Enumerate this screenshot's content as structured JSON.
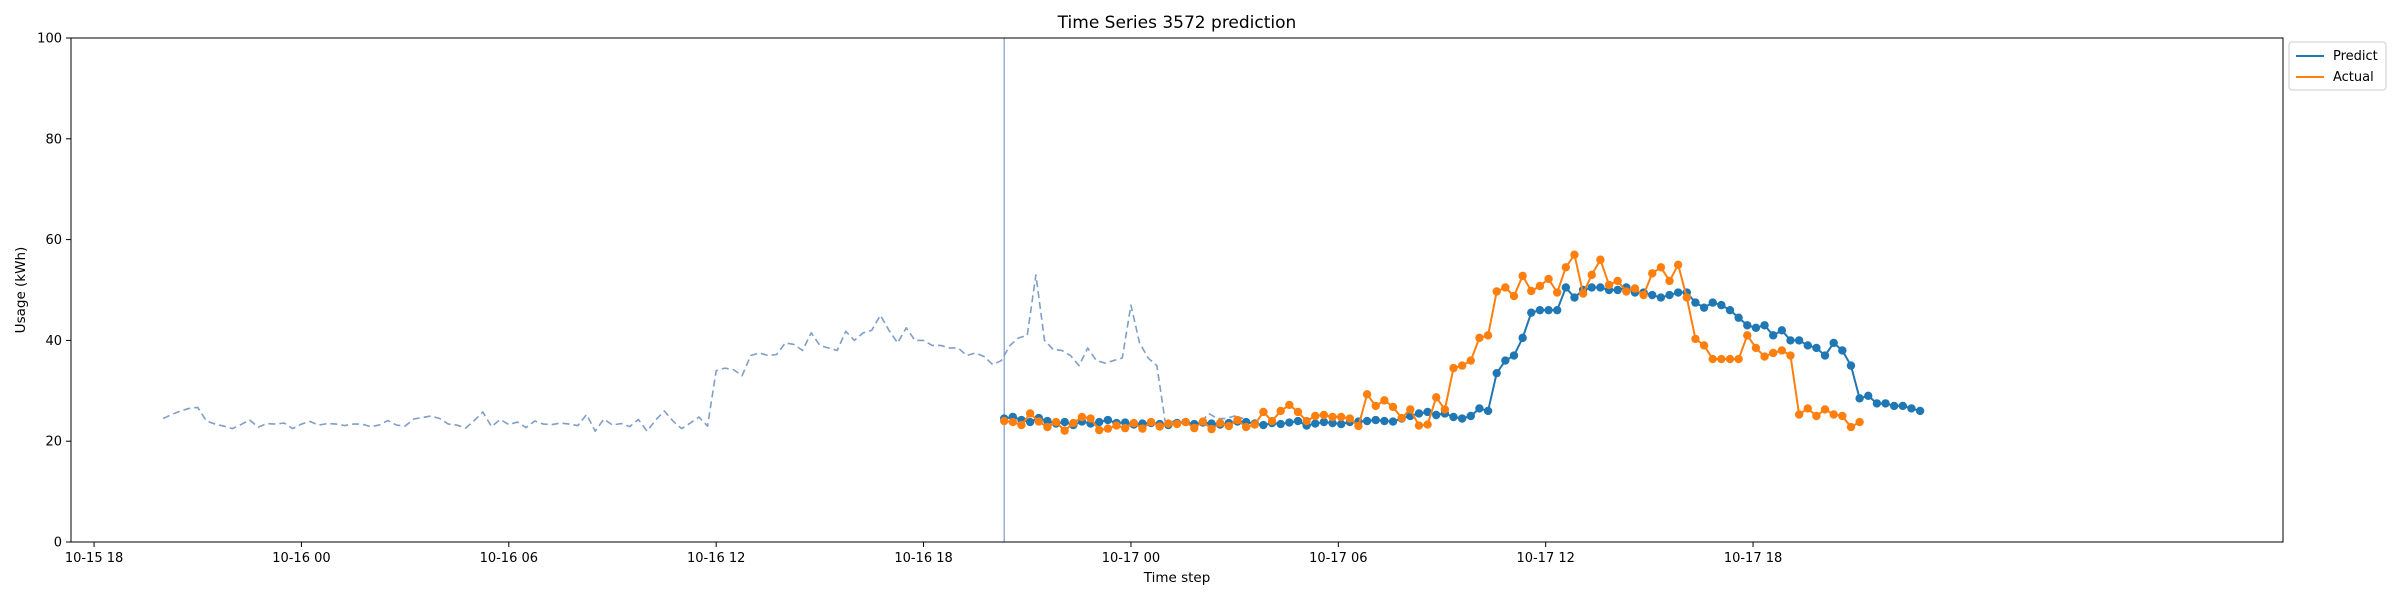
{
  "chart_data": {
    "type": "line",
    "title": "Time Series 3572 prediction",
    "xlabel": "Time step",
    "ylabel": "Usage (kWh)",
    "ylim": [
      0,
      100
    ],
    "xlim_hours": [
      -30,
      34
    ],
    "y_ticks": [
      0,
      20,
      40,
      60,
      80,
      100
    ],
    "x_ticks": [
      {
        "h": -29.333,
        "label": "10-15 18"
      },
      {
        "h": -23.333,
        "label": "10-16 00"
      },
      {
        "h": -17.333,
        "label": "10-16 06"
      },
      {
        "h": -11.333,
        "label": "10-16 12"
      },
      {
        "h": -5.333,
        "label": "10-16 18"
      },
      {
        "h": 0.667,
        "label": "10-17 00"
      },
      {
        "h": 6.667,
        "label": "10-17 06"
      },
      {
        "h": 12.667,
        "label": "10-17 12"
      },
      {
        "h": 18.667,
        "label": "10-17 18"
      }
    ],
    "forecast_start_hour": -3.0,
    "grid": false,
    "legend_position": "outside top-right",
    "history": {
      "start_hour": -27.333,
      "step_hours": 0.25,
      "color": "#7f9ec8",
      "values": [
        24.5,
        25.3,
        26.0,
        26.5,
        26.7,
        24.0,
        23.4,
        23.0,
        22.5,
        23.3,
        24.2,
        22.8,
        23.5,
        23.4,
        23.6,
        22.5,
        23.4,
        23.9,
        23.2,
        23.5,
        23.4,
        23.1,
        23.4,
        23.4,
        22.9,
        23.2,
        24.1,
        23.2,
        23.0,
        24.4,
        24.7,
        25.0,
        24.5,
        23.4,
        23.2,
        22.6,
        24.1,
        25.8,
        22.9,
        24.3,
        23.3,
        23.8,
        22.7,
        24.0,
        23.4,
        23.3,
        23.6,
        23.4,
        23.1,
        25.3,
        22.0,
        24.4,
        23.2,
        23.5,
        22.9,
        24.3,
        22.0,
        24.2,
        26.0,
        24.0,
        22.5,
        23.6,
        24.8,
        23.0,
        34.0,
        34.5,
        34.2,
        33.0,
        37.0,
        37.5,
        37.0,
        37.2,
        39.5,
        39.2,
        38.0,
        41.5,
        39.0,
        38.5,
        38.0,
        41.8,
        40.0,
        41.5,
        42.0,
        45.0,
        42.0,
        39.5,
        42.5,
        40.0,
        40.0,
        39.0,
        39.0,
        38.5,
        38.5,
        37.0,
        37.5,
        36.8,
        35.2,
        36.0,
        39.0,
        40.5,
        41.0,
        53.0,
        40.0,
        38.2,
        38.0,
        37.0,
        35.0,
        38.5,
        36.0,
        35.5,
        36.0,
        36.5,
        47.0,
        39.5,
        36.5,
        35.0,
        23.5,
        24.0,
        23.5,
        23.2,
        23.5,
        25.5,
        24.5,
        24.5,
        25.0,
        24.5
      ]
    },
    "series": [
      {
        "name": "Predict",
        "color": "#1f77b4",
        "values": [
          24.5,
          24.8,
          24.2,
          23.8,
          24.6,
          24.0,
          23.5,
          23.8,
          23.2,
          23.9,
          23.5,
          23.8,
          24.2,
          23.6,
          23.7,
          23.3,
          23.5,
          23.6,
          23.4,
          23.2,
          23.6,
          23.8,
          23.4,
          23.7,
          23.5,
          23.3,
          23.6,
          23.9,
          23.8,
          23.5,
          23.2,
          23.6,
          23.4,
          23.7,
          24.0,
          23.1,
          23.5,
          23.8,
          23.6,
          23.4,
          23.8,
          23.9,
          24.0,
          24.2,
          24.0,
          23.9,
          24.5,
          25.0,
          25.5,
          25.8,
          25.2,
          25.5,
          24.8,
          24.5,
          25.0,
          26.5,
          26.0,
          33.5,
          36.0,
          37.0,
          40.5,
          45.5,
          46.0,
          46.0,
          46.0,
          50.5,
          48.5,
          50.0,
          50.5,
          50.5,
          50.0,
          50.0,
          50.5,
          49.5,
          49.5,
          49.0,
          48.5,
          49.0,
          49.5,
          49.5,
          47.5,
          46.5,
          47.5,
          47.0,
          46.0,
          44.5,
          43.0,
          42.5,
          43.0,
          41.0,
          42.0,
          40.0,
          40.0,
          39.0,
          38.5,
          37.0,
          39.5,
          38.0,
          35.0,
          28.5,
          29.0,
          27.5,
          27.5,
          27.0,
          27.0,
          26.5,
          26.0
        ]
      },
      {
        "name": "Actual",
        "color": "#ff7f0e",
        "values": [
          24.0,
          23.8,
          23.2,
          25.5,
          23.9,
          22.8,
          23.8,
          22.1,
          23.6,
          24.8,
          24.5,
          22.2,
          22.5,
          23.1,
          22.6,
          23.6,
          22.5,
          23.8,
          22.9,
          23.5,
          23.4,
          23.8,
          22.6,
          23.9,
          22.4,
          23.6,
          23.0,
          24.2,
          22.8,
          23.3,
          25.8,
          24.0,
          26.0,
          27.2,
          25.8,
          24.0,
          25.0,
          25.2,
          24.8,
          24.8,
          24.5,
          23.0,
          29.3,
          27.0,
          28.1,
          26.8,
          24.6,
          26.3,
          23.1,
          23.3,
          28.7,
          26.3,
          34.5,
          35.0,
          36.0,
          40.5,
          41.0,
          49.7,
          50.5,
          48.8,
          52.8,
          49.8,
          50.8,
          52.2,
          49.5,
          54.5,
          57.0,
          49.3,
          53.0,
          56.0,
          51.0,
          51.8,
          49.7,
          50.3,
          49.0,
          53.3,
          54.5,
          51.8,
          55.0,
          48.5,
          40.3,
          39.0,
          36.3,
          36.3,
          36.3,
          36.3,
          41.0,
          38.5,
          36.8,
          37.5,
          38.0,
          37.0,
          25.3,
          26.5,
          25.0,
          26.3,
          25.3,
          25.0,
          22.8,
          23.8
        ]
      }
    ]
  },
  "legend": {
    "items": [
      "Predict",
      "Actual"
    ]
  }
}
